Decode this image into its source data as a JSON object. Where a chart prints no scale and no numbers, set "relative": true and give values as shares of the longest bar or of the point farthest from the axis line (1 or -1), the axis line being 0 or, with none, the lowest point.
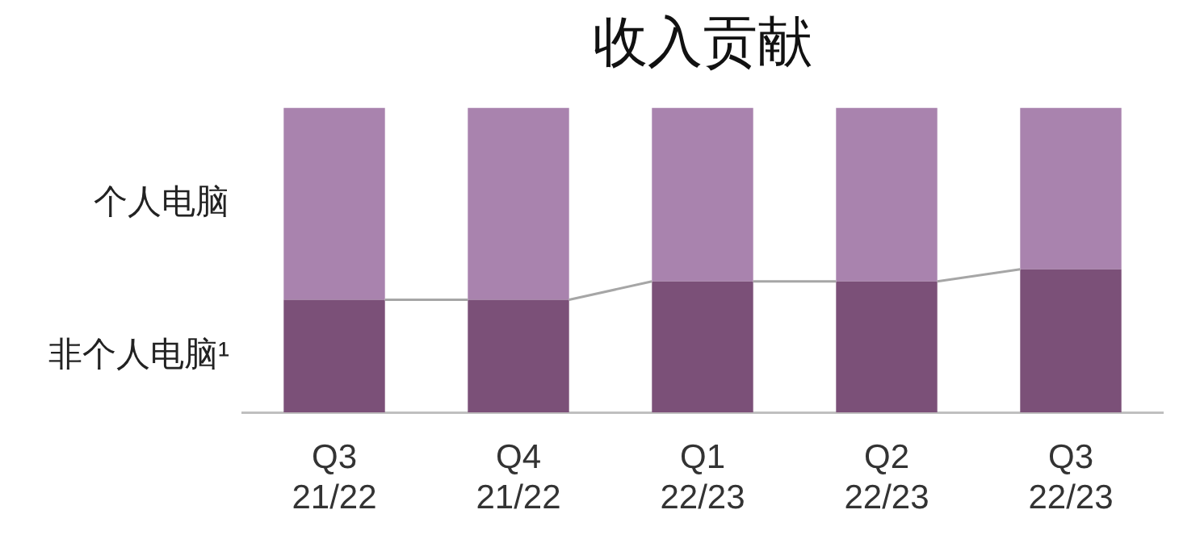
{
  "chart_data": {
    "type": "bar",
    "title": "收入贡献",
    "stacked": true,
    "relative": true,
    "categories": [
      "Q3 21/22",
      "Q4 21/22",
      "Q1 22/23",
      "Q2 22/23",
      "Q3 22/23"
    ],
    "series": [
      {
        "name": "非个人电脑¹",
        "color": "#7b5078",
        "values": [
          0.37,
          0.37,
          0.43,
          0.43,
          0.47
        ]
      },
      {
        "name": "个人电脑",
        "color": "#a983ae",
        "values": [
          0.63,
          0.63,
          0.57,
          0.57,
          0.53
        ]
      }
    ]
  }
}
